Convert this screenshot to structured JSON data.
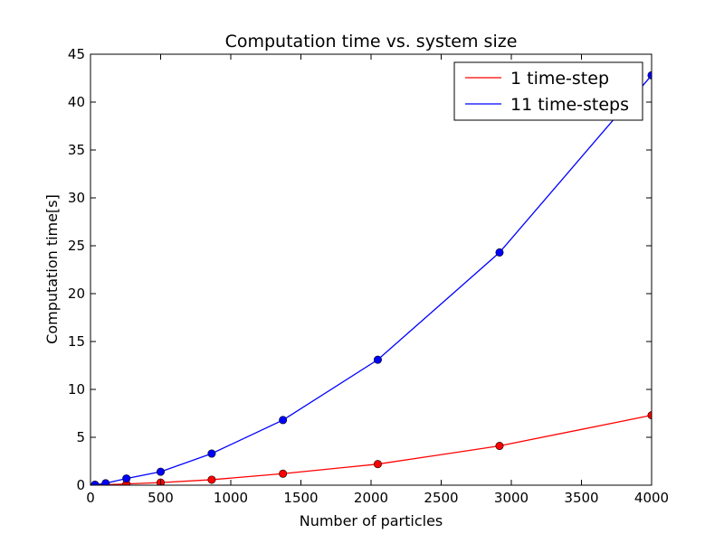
{
  "chart_data": {
    "type": "line",
    "title": "Computation time vs. system size",
    "xlabel": "Number of particles",
    "ylabel": "Computation time[s]",
    "xlim": [
      0,
      4000
    ],
    "ylim": [
      0,
      45
    ],
    "xticks": [
      0,
      500,
      1000,
      1500,
      2000,
      2500,
      3000,
      3500,
      4000
    ],
    "yticks": [
      0,
      5,
      10,
      15,
      20,
      25,
      30,
      35,
      40,
      45
    ],
    "grid": false,
    "legend_position": "top-right",
    "series": [
      {
        "name": "1 time-step",
        "color": "#ff0000",
        "marker": "circle",
        "x": [
          32,
          108,
          256,
          500,
          864,
          1372,
          2048,
          2916,
          4000
        ],
        "y": [
          0.02,
          0.05,
          0.13,
          0.27,
          0.57,
          1.2,
          2.2,
          4.1,
          7.3
        ]
      },
      {
        "name": "11 time-steps",
        "color": "#0000ff",
        "marker": "circle",
        "x": [
          32,
          108,
          256,
          500,
          864,
          1372,
          2048,
          2916,
          4000
        ],
        "y": [
          0.05,
          0.2,
          0.7,
          1.4,
          3.3,
          6.8,
          13.1,
          24.3,
          42.8
        ]
      }
    ]
  }
}
